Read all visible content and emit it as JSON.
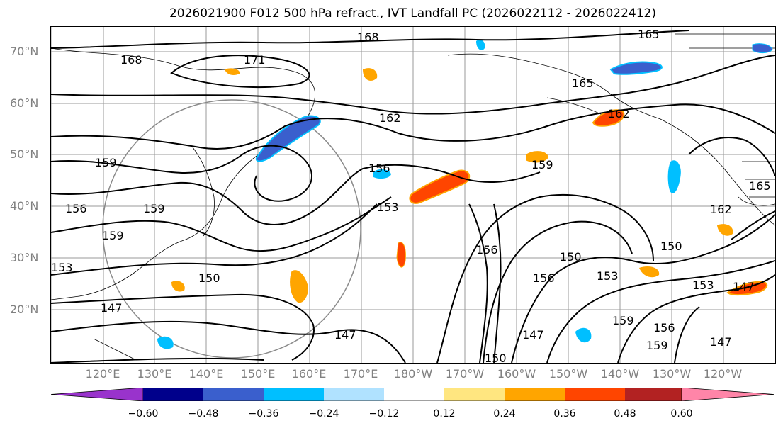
{
  "title": "2026021900 F012 500 hPa refract., IVT Landfall PC (2026022112 - 2026022412)",
  "lat_labels": [
    "70°N",
    "60°N",
    "50°N",
    "40°N",
    "30°N",
    "20°N"
  ],
  "lon_labels": [
    "120°E",
    "130°E",
    "140°E",
    "150°E",
    "160°E",
    "170°E",
    "180°W",
    "170°W",
    "160°W",
    "150°W",
    "140°W",
    "130°W",
    "120°W"
  ],
  "contour_labels": [
    "168",
    "165",
    "171",
    "168",
    "165",
    "162",
    "162",
    "159",
    "156",
    "159",
    "159",
    "156",
    "159",
    "153",
    "162",
    "150",
    "153",
    "150",
    "150",
    "153",
    "147",
    "147",
    "147",
    "153",
    "156",
    "159",
    "156",
    "159",
    "150",
    "147",
    "147",
    "156",
    "165"
  ],
  "colorbar": {
    "ticks": [
      "−0.60",
      "−0.48",
      "−0.36",
      "−0.24",
      "−0.12",
      "0.12",
      "0.24",
      "0.36",
      "0.48",
      "0.60"
    ],
    "colors": [
      "#9933cc",
      "#00008b",
      "#3a5fcd",
      "#00bfff",
      "#b0e2ff",
      "#ffffff",
      "#ffe680",
      "#ffa500",
      "#ff4500",
      "#b22222",
      "#ff85a8"
    ]
  }
}
